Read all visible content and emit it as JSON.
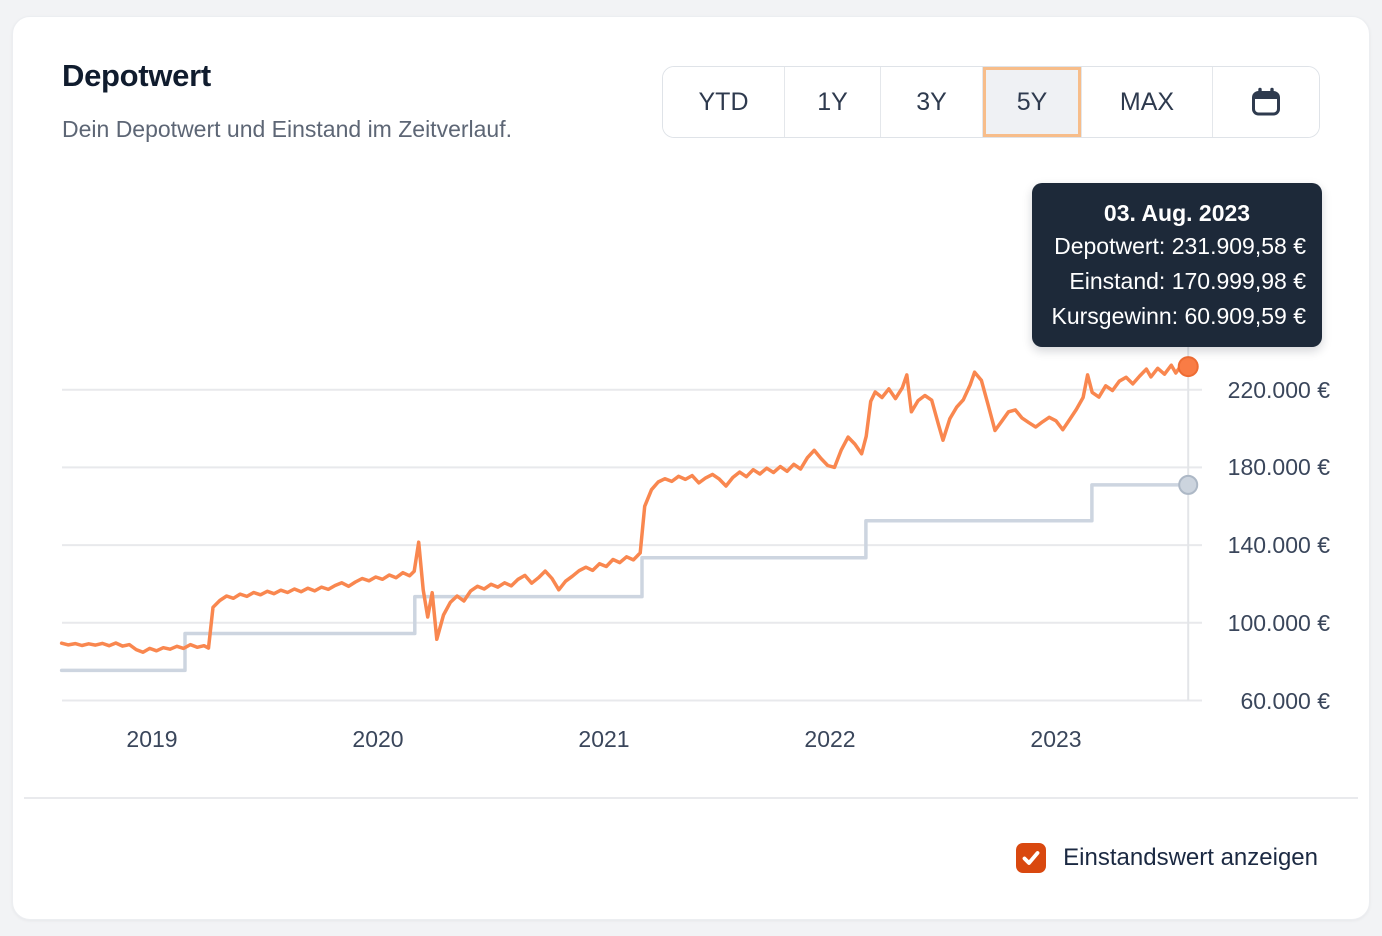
{
  "card": {
    "title": "Depotwert",
    "subtitle": "Dein Depotwert und Einstand im Zeitverlauf."
  },
  "range_selector": {
    "options": [
      {
        "label": "YTD",
        "selected": false
      },
      {
        "label": "1Y",
        "selected": false
      },
      {
        "label": "3Y",
        "selected": false
      },
      {
        "label": "5Y",
        "selected": true
      },
      {
        "label": "MAX",
        "selected": false
      }
    ],
    "calendar_icon": "calendar-icon"
  },
  "tooltip": {
    "date": "03. Aug. 2023",
    "rows": [
      {
        "label": "Depotwert:",
        "value": "231.909,58 €"
      },
      {
        "label": "Einstand:",
        "value": "170.999,98 €"
      },
      {
        "label": "Kursgewinn:",
        "value": "60.909,59 €"
      }
    ]
  },
  "footer": {
    "checkbox_label": "Einstandswert anzeigen",
    "checked": true
  },
  "colors": {
    "depotwert_line": "#f9874f",
    "depotwert_dot": "#f97c45",
    "depotwert_dot_stroke": "#ee6c33",
    "einstand_line": "#cdd5e0",
    "einstand_dot": "#ccd4de",
    "einstand_dot_stroke": "#adb8c6",
    "gridline": "#e8e9ec",
    "crosshair": "#e3e5e8",
    "tooltip_bg": "#1d2939",
    "accent_checkbox": "#d9480f",
    "selected_range_border": "#f7bd8a",
    "title_text": "#101c2e",
    "subtitle_text": "#5d6675",
    "axis_text": "#3a465b"
  },
  "chart_data": {
    "type": "line",
    "title": "Depotwert",
    "grid": "horizontal",
    "legend": "none",
    "x_axis": {
      "tick_labels": [
        "2019",
        "2020",
        "2021",
        "2022",
        "2023"
      ],
      "tick_values": [
        2019,
        2020,
        2021,
        2022,
        2023
      ],
      "range": [
        2018.6,
        2023.585
      ]
    },
    "y_axis": {
      "tick_labels": [
        "220.000 €",
        "180.000 €",
        "140.000 €",
        "100.000 €",
        "60.000 €"
      ],
      "tick_values": [
        220000,
        180000,
        140000,
        100000,
        60000
      ],
      "range": [
        60000,
        245000
      ],
      "unit": "€"
    },
    "highlight": {
      "t": 2023.585,
      "date": "03. Aug. 2023",
      "depotwert": 231909.58,
      "einstand": 170999.98,
      "kursgewinn": 60909.59
    },
    "series": [
      {
        "name": "Depotwert",
        "color": "#f9874f",
        "style": "line",
        "points": [
          [
            2018.6,
            89500
          ],
          [
            2018.63,
            88600
          ],
          [
            2018.66,
            89300
          ],
          [
            2018.69,
            88300
          ],
          [
            2018.72,
            89200
          ],
          [
            2018.75,
            88500
          ],
          [
            2018.78,
            89400
          ],
          [
            2018.81,
            88200
          ],
          [
            2018.84,
            89600
          ],
          [
            2018.87,
            88000
          ],
          [
            2018.9,
            88800
          ],
          [
            2018.93,
            86200
          ],
          [
            2018.96,
            84800
          ],
          [
            2018.99,
            86800
          ],
          [
            2019.02,
            85600
          ],
          [
            2019.05,
            87200
          ],
          [
            2019.08,
            86400
          ],
          [
            2019.11,
            87900
          ],
          [
            2019.14,
            86800
          ],
          [
            2019.17,
            88800
          ],
          [
            2019.2,
            87400
          ],
          [
            2019.23,
            88200
          ],
          [
            2019.25,
            87000
          ],
          [
            2019.27,
            108000
          ],
          [
            2019.3,
            111500
          ],
          [
            2019.33,
            113800
          ],
          [
            2019.36,
            112600
          ],
          [
            2019.39,
            114800
          ],
          [
            2019.42,
            113600
          ],
          [
            2019.45,
            115600
          ],
          [
            2019.48,
            114400
          ],
          [
            2019.51,
            116200
          ],
          [
            2019.54,
            115000
          ],
          [
            2019.57,
            116800
          ],
          [
            2019.6,
            115600
          ],
          [
            2019.63,
            117400
          ],
          [
            2019.66,
            116000
          ],
          [
            2019.69,
            117800
          ],
          [
            2019.72,
            116400
          ],
          [
            2019.75,
            118400
          ],
          [
            2019.78,
            117200
          ],
          [
            2019.81,
            119200
          ],
          [
            2019.84,
            120600
          ],
          [
            2019.87,
            118800
          ],
          [
            2019.9,
            121000
          ],
          [
            2019.93,
            122800
          ],
          [
            2019.96,
            121600
          ],
          [
            2019.99,
            123600
          ],
          [
            2020.02,
            122400
          ],
          [
            2020.05,
            124600
          ],
          [
            2020.08,
            123200
          ],
          [
            2020.11,
            125800
          ],
          [
            2020.14,
            124200
          ],
          [
            2020.16,
            126500
          ],
          [
            2020.18,
            141500
          ],
          [
            2020.2,
            117000
          ],
          [
            2020.22,
            103000
          ],
          [
            2020.24,
            115500
          ],
          [
            2020.26,
            91500
          ],
          [
            2020.29,
            104000
          ],
          [
            2020.32,
            110500
          ],
          [
            2020.35,
            113800
          ],
          [
            2020.38,
            111200
          ],
          [
            2020.41,
            116400
          ],
          [
            2020.44,
            118800
          ],
          [
            2020.47,
            117400
          ],
          [
            2020.5,
            119800
          ],
          [
            2020.53,
            118400
          ],
          [
            2020.56,
            120600
          ],
          [
            2020.59,
            119000
          ],
          [
            2020.62,
            122400
          ],
          [
            2020.65,
            124400
          ],
          [
            2020.68,
            120400
          ],
          [
            2020.71,
            123200
          ],
          [
            2020.74,
            126600
          ],
          [
            2020.77,
            122800
          ],
          [
            2020.8,
            117000
          ],
          [
            2020.83,
            121400
          ],
          [
            2020.86,
            124000
          ],
          [
            2020.89,
            126800
          ],
          [
            2020.92,
            128600
          ],
          [
            2020.95,
            127000
          ],
          [
            2020.98,
            130400
          ],
          [
            2021.01,
            129000
          ],
          [
            2021.04,
            132600
          ],
          [
            2021.07,
            131000
          ],
          [
            2021.1,
            134000
          ],
          [
            2021.13,
            132400
          ],
          [
            2021.16,
            136000
          ],
          [
            2021.18,
            160000
          ],
          [
            2021.21,
            168500
          ],
          [
            2021.24,
            172500
          ],
          [
            2021.27,
            174200
          ],
          [
            2021.3,
            172800
          ],
          [
            2021.33,
            175400
          ],
          [
            2021.36,
            173800
          ],
          [
            2021.39,
            175800
          ],
          [
            2021.42,
            172000
          ],
          [
            2021.45,
            174600
          ],
          [
            2021.48,
            176400
          ],
          [
            2021.51,
            174000
          ],
          [
            2021.54,
            170400
          ],
          [
            2021.57,
            174800
          ],
          [
            2021.6,
            177600
          ],
          [
            2021.63,
            175200
          ],
          [
            2021.66,
            178800
          ],
          [
            2021.69,
            176600
          ],
          [
            2021.72,
            179600
          ],
          [
            2021.75,
            177400
          ],
          [
            2021.78,
            180400
          ],
          [
            2021.81,
            178000
          ],
          [
            2021.84,
            181600
          ],
          [
            2021.87,
            179200
          ],
          [
            2021.9,
            185000
          ],
          [
            2021.93,
            188800
          ],
          [
            2021.96,
            184600
          ],
          [
            2021.99,
            181000
          ],
          [
            2022.02,
            180000
          ],
          [
            2022.05,
            189000
          ],
          [
            2022.08,
            195600
          ],
          [
            2022.11,
            192000
          ],
          [
            2022.14,
            187000
          ],
          [
            2022.16,
            196000
          ],
          [
            2022.18,
            214000
          ],
          [
            2022.2,
            218800
          ],
          [
            2022.23,
            216000
          ],
          [
            2022.26,
            220400
          ],
          [
            2022.29,
            215400
          ],
          [
            2022.32,
            221000
          ],
          [
            2022.34,
            227600
          ],
          [
            2022.36,
            208600
          ],
          [
            2022.39,
            214400
          ],
          [
            2022.42,
            217000
          ],
          [
            2022.45,
            214600
          ],
          [
            2022.48,
            202000
          ],
          [
            2022.5,
            194000
          ],
          [
            2022.53,
            205000
          ],
          [
            2022.56,
            211000
          ],
          [
            2022.59,
            214800
          ],
          [
            2022.62,
            222400
          ],
          [
            2022.64,
            229000
          ],
          [
            2022.67,
            224800
          ],
          [
            2022.7,
            212000
          ],
          [
            2022.73,
            199000
          ],
          [
            2022.76,
            203800
          ],
          [
            2022.79,
            208600
          ],
          [
            2022.82,
            209600
          ],
          [
            2022.85,
            205400
          ],
          [
            2022.88,
            203000
          ],
          [
            2022.91,
            200800
          ],
          [
            2022.94,
            203400
          ],
          [
            2022.97,
            205800
          ],
          [
            2023.0,
            204000
          ],
          [
            2023.03,
            199400
          ],
          [
            2023.06,
            204600
          ],
          [
            2023.09,
            209800
          ],
          [
            2023.12,
            216000
          ],
          [
            2023.14,
            227600
          ],
          [
            2023.16,
            218600
          ],
          [
            2023.19,
            216200
          ],
          [
            2023.22,
            222000
          ],
          [
            2023.25,
            219600
          ],
          [
            2023.28,
            224400
          ],
          [
            2023.31,
            226400
          ],
          [
            2023.34,
            223000
          ],
          [
            2023.37,
            227000
          ],
          [
            2023.4,
            230600
          ],
          [
            2023.42,
            226600
          ],
          [
            2023.45,
            231000
          ],
          [
            2023.48,
            228000
          ],
          [
            2023.51,
            232600
          ],
          [
            2023.53,
            228600
          ],
          [
            2023.56,
            233600
          ],
          [
            2023.58,
            229800
          ],
          [
            2023.585,
            231909.58
          ]
        ]
      },
      {
        "name": "Einstand",
        "color": "#cdd5e0",
        "style": "step",
        "points": [
          [
            2018.6,
            75500
          ],
          [
            2019.146,
            94500
          ],
          [
            2020.163,
            113500
          ],
          [
            2021.168,
            133500
          ],
          [
            2022.159,
            152500
          ],
          [
            2023.159,
            170999.98
          ]
        ]
      }
    ]
  }
}
